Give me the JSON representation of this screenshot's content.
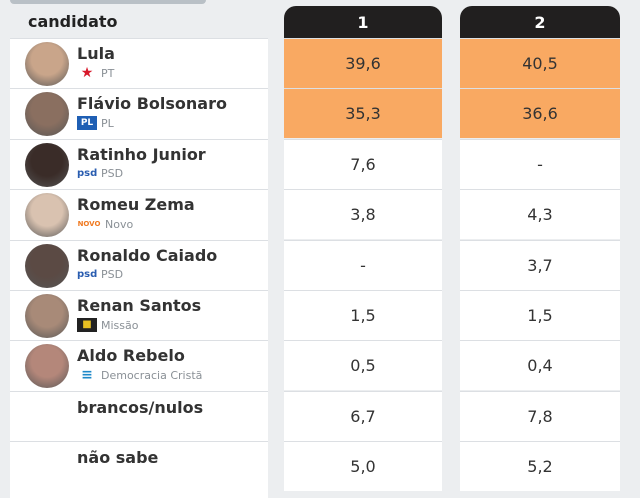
{
  "header": {
    "candidate_label": "candidato",
    "columns": [
      "1",
      "2"
    ]
  },
  "colors": {
    "highlight": "#f9a962",
    "header_bg": "#211f1f"
  },
  "chart_data": {
    "type": "table",
    "columns": [
      "candidato",
      "1",
      "2"
    ],
    "rows": [
      {
        "name": "Lula",
        "party": "PT",
        "party_icon": "pt-star-logo",
        "values": [
          "39,6",
          "40,5"
        ],
        "highlight": true,
        "avatar": "#c9a58a"
      },
      {
        "name": "Flávio Bolsonaro",
        "party": "PL",
        "party_icon": "pl-logo",
        "values": [
          "35,3",
          "36,6"
        ],
        "highlight": true,
        "avatar": "#8a6f60"
      },
      {
        "name": "Ratinho Junior",
        "party": "PSD",
        "party_icon": "psd-logo",
        "values": [
          "7,6",
          "-"
        ],
        "highlight": false,
        "avatar": "#3a2c28"
      },
      {
        "name": "Romeu Zema",
        "party": "Novo",
        "party_icon": "novo-logo",
        "values": [
          "3,8",
          "4,3"
        ],
        "highlight": false,
        "avatar": "#d9c2b0"
      },
      {
        "name": "Ronaldo Caiado",
        "party": "PSD",
        "party_icon": "psd-logo",
        "values": [
          "-",
          "3,7"
        ],
        "highlight": false,
        "avatar": "#5b4a44"
      },
      {
        "name": "Renan Santos",
        "party": "Missão",
        "party_icon": "missao-logo",
        "values": [
          "1,5",
          "1,5"
        ],
        "highlight": false,
        "avatar": "#a88a78"
      },
      {
        "name": "Aldo Rebelo",
        "party": "Democracia Cristã",
        "party_icon": "dc-logo",
        "values": [
          "0,5",
          "0,4"
        ],
        "highlight": false,
        "avatar": "#b4877a"
      },
      {
        "name": "brancos/nulos",
        "party": "",
        "values": [
          "6,7",
          "7,8"
        ],
        "highlight": false
      },
      {
        "name": "não sabe",
        "party": "",
        "values": [
          "5,0",
          "5,2"
        ],
        "highlight": false
      }
    ]
  }
}
